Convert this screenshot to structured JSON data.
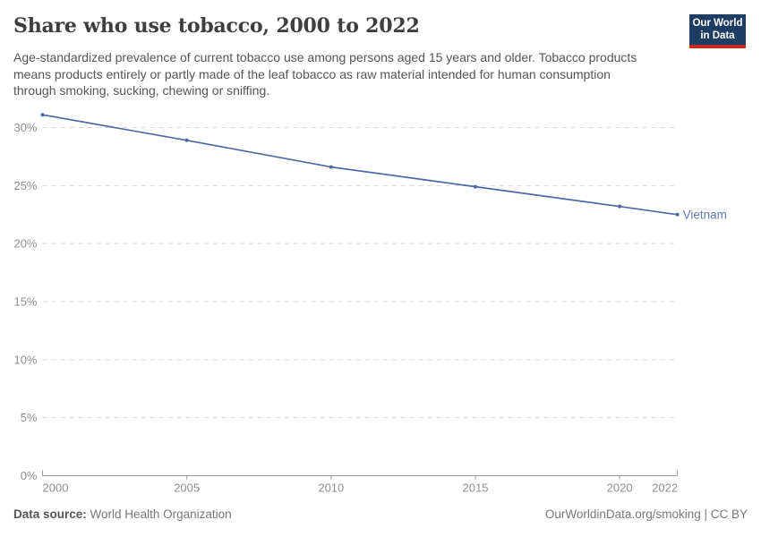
{
  "header": {
    "title": "Share who use tobacco, 2000 to 2022",
    "subtitle": "Age-standardized prevalence of current tobacco use among persons aged 15 years and older. Tobacco products means products entirely or partly made of the leaf tobacco as raw material intended for human consumption through smoking, sucking, chewing or sniffing.",
    "logo": {
      "line1": "Our World",
      "line2": "in Data",
      "bg_color": "#1d3d63",
      "accent_color": "#c42b22"
    }
  },
  "chart_data": {
    "type": "line",
    "title": "Share who use tobacco, 2000 to 2022",
    "series": [
      {
        "name": "Vietnam",
        "color": "#4b69a5",
        "label_color": "#5b7bb5",
        "x": [
          2000,
          2005,
          2010,
          2015,
          2020,
          2022
        ],
        "values": [
          31.1,
          28.9,
          26.6,
          24.9,
          23.2,
          22.5
        ]
      }
    ],
    "x_ticks": [
      {
        "value": 2000,
        "label": "2000"
      },
      {
        "value": 2005,
        "label": "2005"
      },
      {
        "value": 2010,
        "label": "2010"
      },
      {
        "value": 2015,
        "label": "2015"
      },
      {
        "value": 2020,
        "label": "2020"
      },
      {
        "value": 2022,
        "label": "2022"
      }
    ],
    "y_ticks": [
      {
        "value": 0,
        "label": "0%"
      },
      {
        "value": 5,
        "label": "5%"
      },
      {
        "value": 10,
        "label": "10%"
      },
      {
        "value": 15,
        "label": "15%"
      },
      {
        "value": 20,
        "label": "20%"
      },
      {
        "value": 25,
        "label": "25%"
      },
      {
        "value": 30,
        "label": "30%"
      }
    ],
    "xlim": [
      2000,
      2022
    ],
    "ylim": [
      0,
      30
    ],
    "grid": true,
    "legend": "end-of-line-label",
    "grid_color": "#dadada",
    "axis_color": "#999999",
    "tick_label_color": "#8f8f8f"
  },
  "footer": {
    "source_label": "Data source:",
    "source_value": "World Health Organization",
    "credit": "OurWorldinData.org/smoking | CC BY"
  }
}
